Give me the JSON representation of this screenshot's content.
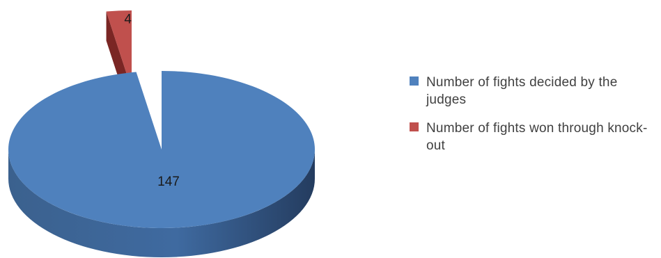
{
  "chart_data": {
    "type": "pie",
    "style": "3d-exploded",
    "legend_position": "right",
    "slices": [
      {
        "label": "Number of  fights decided by the judges",
        "value": 147,
        "data_label": "147",
        "color": "#4f81bd"
      },
      {
        "label": "Number of fights won through knock-out",
        "value": 4,
        "data_label": "4",
        "color": "#c0504d"
      }
    ]
  },
  "legend": {
    "items": [
      {
        "label": "Number of  fights decided by the judges",
        "color": "#4f81bd"
      },
      {
        "label": "Number of fights won through knock-out",
        "color": "#c0504d"
      }
    ]
  }
}
